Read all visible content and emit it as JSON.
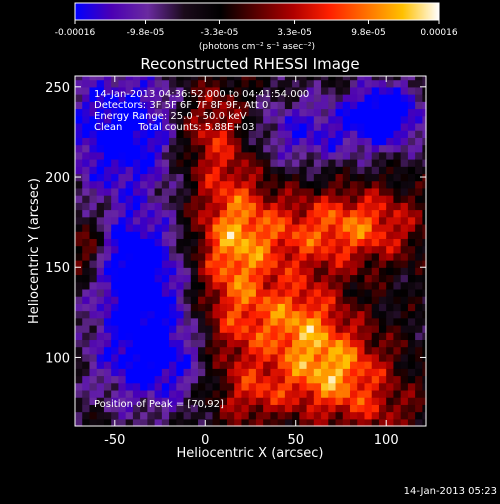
{
  "chart_data": {
    "type": "heatmap",
    "title": "Reconstructed RHESSI Image",
    "xlabel": "Heliocentric X (arcsec)",
    "ylabel": "Heliocentric Y (arcsec)",
    "xlim": [
      -72,
      122
    ],
    "ylim": [
      62,
      256
    ],
    "x_ticks": [
      -50,
      0,
      50,
      100
    ],
    "y_ticks": [
      100,
      150,
      200,
      250
    ],
    "grid": false,
    "colorbar": {
      "min": -0.00016,
      "max": 0.00016,
      "ticks": [
        -0.00016,
        -9.8e-05,
        -3.3e-05,
        3.3e-05,
        9.8e-05,
        0.00016
      ],
      "tick_labels": [
        "-0.00016",
        "-9.8e-05",
        "-3.3e-05",
        "3.3e-05",
        "9.8e-05",
        "0.00016"
      ],
      "unit_label": "(photons cm⁻² s⁻¹ asec⁻²)",
      "colors": [
        "#0000ff",
        "#4b00b4",
        "#6a2aa0",
        "#1a0a1a",
        "#000000",
        "#5a0000",
        "#b00000",
        "#ff2000",
        "#ff7000",
        "#ffc000",
        "#ffffff"
      ]
    },
    "annotations": [
      "14-Jan-2013 04:36:52.000 to 04:41:54.000",
      "Detectors: 3F 5F 6F 7F 8F 9F, Att 0",
      "Energy Range: 25.0 - 50.0 keV",
      "Clean     Total counts: 5.88E+03"
    ],
    "peak_label": "Position of Peak = [70,92]",
    "peak": [
      70,
      92
    ],
    "pixel_size_arcsec": 4,
    "sources": [
      {
        "x": 70,
        "y": 92,
        "sx": 22,
        "sy": 18,
        "amp": 1.0
      },
      {
        "x": 50,
        "y": 122,
        "sx": 18,
        "sy": 16,
        "amp": 0.75
      },
      {
        "x": 15,
        "y": 148,
        "sx": 14,
        "sy": 55,
        "amp": 0.7
      },
      {
        "x": 48,
        "y": 168,
        "sx": 35,
        "sy": 18,
        "amp": 0.6
      },
      {
        "x": 90,
        "y": 175,
        "sx": 22,
        "sy": 14,
        "amp": 0.55
      },
      {
        "x": 0,
        "y": 225,
        "sx": 14,
        "sy": 20,
        "amp": 0.6
      },
      {
        "x": -65,
        "y": 160,
        "sx": 9,
        "sy": 14,
        "amp": 0.55
      },
      {
        "x": 30,
        "y": 80,
        "sx": 12,
        "sy": 10,
        "amp": 0.35
      },
      {
        "x": 100,
        "y": 70,
        "sx": 18,
        "sy": 10,
        "amp": 0.3
      }
    ],
    "negatives": [
      {
        "x": -45,
        "y": 225,
        "sx": 25,
        "sy": 25,
        "amp": -0.85
      },
      {
        "x": -38,
        "y": 150,
        "sx": 18,
        "sy": 22,
        "amp": -1.0
      },
      {
        "x": -30,
        "y": 100,
        "sx": 22,
        "sy": 20,
        "amp": -0.8
      },
      {
        "x": 100,
        "y": 235,
        "sx": 14,
        "sy": 12,
        "amp": -1.0
      },
      {
        "x": 55,
        "y": 225,
        "sx": 25,
        "sy": 14,
        "amp": -0.55
      }
    ]
  },
  "timestamp": "14-Jan-2013 05:23"
}
